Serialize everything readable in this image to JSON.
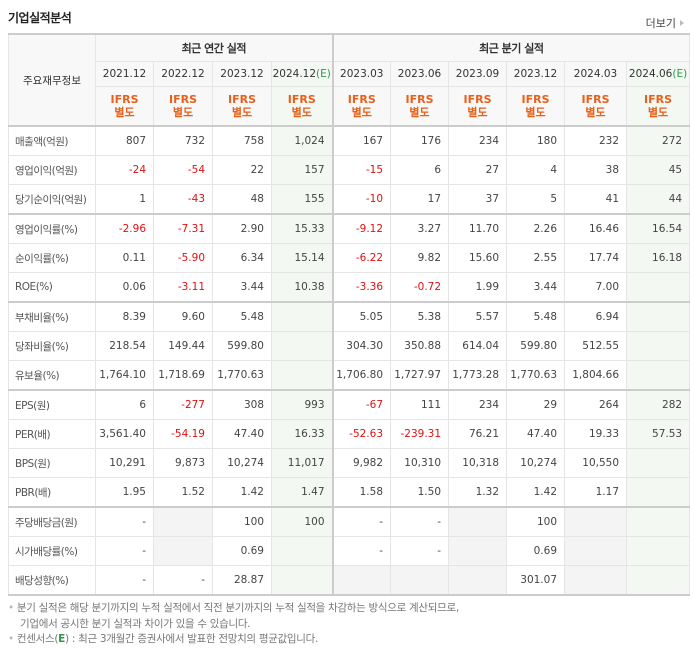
{
  "title": "기업실적분석",
  "more_link": "더보기",
  "header": {
    "row_header": "주요재무정보",
    "annual_group": "최근 연간 실적",
    "quarterly_group": "최근 분기 실적",
    "annual_periods": [
      "2021.12",
      "2022.12",
      "2023.12",
      "2024.12"
    ],
    "annual_estimate_flags": [
      false,
      false,
      false,
      true
    ],
    "quarterly_periods": [
      "2023.03",
      "2023.06",
      "2023.09",
      "2023.12",
      "2024.03",
      "2024.06"
    ],
    "quarterly_estimate_flags": [
      false,
      false,
      false,
      false,
      false,
      true
    ],
    "estimate_mark": "(E)",
    "ifrs_line1": "IFRS",
    "ifrs_line2": "별도"
  },
  "rows": [
    {
      "label": "매출액(억원)",
      "values": [
        "807",
        "732",
        "758",
        "1,024",
        "167",
        "176",
        "234",
        "180",
        "232",
        "272"
      ]
    },
    {
      "label": "영업이익(억원)",
      "values": [
        "-24",
        "-54",
        "22",
        "157",
        "-15",
        "6",
        "27",
        "4",
        "38",
        "45"
      ]
    },
    {
      "label": "당기순이익(억원)",
      "values": [
        "1",
        "-43",
        "48",
        "155",
        "-10",
        "17",
        "37",
        "5",
        "41",
        "44"
      ]
    },
    {
      "label": "영업이익률(%)",
      "values": [
        "-2.96",
        "-7.31",
        "2.90",
        "15.33",
        "-9.12",
        "3.27",
        "11.70",
        "2.26",
        "16.46",
        "16.54"
      ]
    },
    {
      "label": "순이익률(%)",
      "values": [
        "0.11",
        "-5.90",
        "6.34",
        "15.14",
        "-6.22",
        "9.82",
        "15.60",
        "2.55",
        "17.74",
        "16.18"
      ]
    },
    {
      "label": "ROE(%)",
      "values": [
        "0.06",
        "-3.11",
        "3.44",
        "10.38",
        "-3.36",
        "-0.72",
        "1.99",
        "3.44",
        "7.00",
        ""
      ]
    },
    {
      "label": "부채비율(%)",
      "values": [
        "8.39",
        "9.60",
        "5.48",
        "",
        "5.05",
        "5.38",
        "5.57",
        "5.48",
        "6.94",
        ""
      ]
    },
    {
      "label": "당좌비율(%)",
      "values": [
        "218.54",
        "149.44",
        "599.80",
        "",
        "304.30",
        "350.88",
        "614.04",
        "599.80",
        "512.55",
        ""
      ]
    },
    {
      "label": "유보율(%)",
      "values": [
        "1,764.10",
        "1,718.69",
        "1,770.63",
        "",
        "1,706.80",
        "1,727.97",
        "1,773.28",
        "1,770.63",
        "1,804.66",
        ""
      ]
    },
    {
      "label": "EPS(원)",
      "values": [
        "6",
        "-277",
        "308",
        "993",
        "-67",
        "111",
        "234",
        "29",
        "264",
        "282"
      ]
    },
    {
      "label": "PER(배)",
      "values": [
        "3,561.40",
        "-54.19",
        "47.40",
        "16.33",
        "-52.63",
        "-239.31",
        "76.21",
        "47.40",
        "19.33",
        "57.53"
      ]
    },
    {
      "label": "BPS(원)",
      "values": [
        "10,291",
        "9,873",
        "10,274",
        "11,017",
        "9,982",
        "10,310",
        "10,318",
        "10,274",
        "10,550",
        ""
      ]
    },
    {
      "label": "PBR(배)",
      "values": [
        "1.95",
        "1.52",
        "1.42",
        "1.47",
        "1.58",
        "1.50",
        "1.32",
        "1.42",
        "1.17",
        ""
      ]
    },
    {
      "label": "주당배당금(원)",
      "values": [
        "-",
        "",
        "100",
        "100",
        "-",
        "-",
        "",
        "100",
        "",
        ""
      ]
    },
    {
      "label": "시가배당률(%)",
      "values": [
        "-",
        "",
        "0.69",
        "",
        "-",
        "-",
        "",
        "0.69",
        "",
        ""
      ]
    },
    {
      "label": "배당성향(%)",
      "values": [
        "-",
        "-",
        "28.87",
        "",
        "",
        "",
        "",
        "301.07",
        "",
        ""
      ]
    }
  ],
  "notes": {
    "line1": "분기 실적은 해당 분기까지의 누적 실적에서 직전 분기까지의 누적 실적을 차감하는 방식으로 계산되므로,",
    "line2": "기업에서 공시한 분기 실적과 차이가 있을 수 있습니다.",
    "line3_prefix": "컨센서스(",
    "line3_e": "E",
    "line3_suffix": ") : 최근 3개월간 증권사에서 발표한 전망치의 평균값입니다."
  },
  "colors": {
    "ifrs_orange": "#e8601a",
    "negative_red": "#e01010",
    "estimate_green": "#2e9a4d",
    "estimate_bg": "#f3f8f3",
    "empty_gray_bg": "#f4f4f4"
  }
}
